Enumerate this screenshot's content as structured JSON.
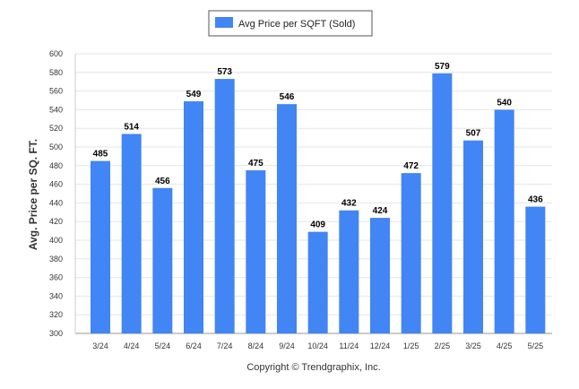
{
  "chart_data": {
    "type": "bar",
    "categories": [
      "3/24",
      "4/24",
      "5/24",
      "6/24",
      "7/24",
      "8/24",
      "9/24",
      "10/24",
      "11/24",
      "12/24",
      "1/25",
      "2/25",
      "3/25",
      "4/25",
      "5/25"
    ],
    "series": [
      {
        "name": "Avg Price per SQFT (Sold)",
        "values": [
          485,
          514,
          456,
          549,
          573,
          475,
          546,
          409,
          432,
          424,
          472,
          579,
          507,
          540,
          436
        ],
        "color": "#4285f4"
      }
    ],
    "ylabel": "Avg. Price per SQ. FT.",
    "xlabel": "",
    "ylim": [
      300,
      600
    ],
    "yticks": [
      300,
      320,
      340,
      360,
      380,
      400,
      420,
      440,
      460,
      480,
      500,
      520,
      540,
      560,
      580,
      600
    ],
    "grid": true,
    "legend_position": "top-center",
    "data_labels": true
  },
  "footer": {
    "copyright": "Copyright © Trendgraphix, Inc."
  }
}
